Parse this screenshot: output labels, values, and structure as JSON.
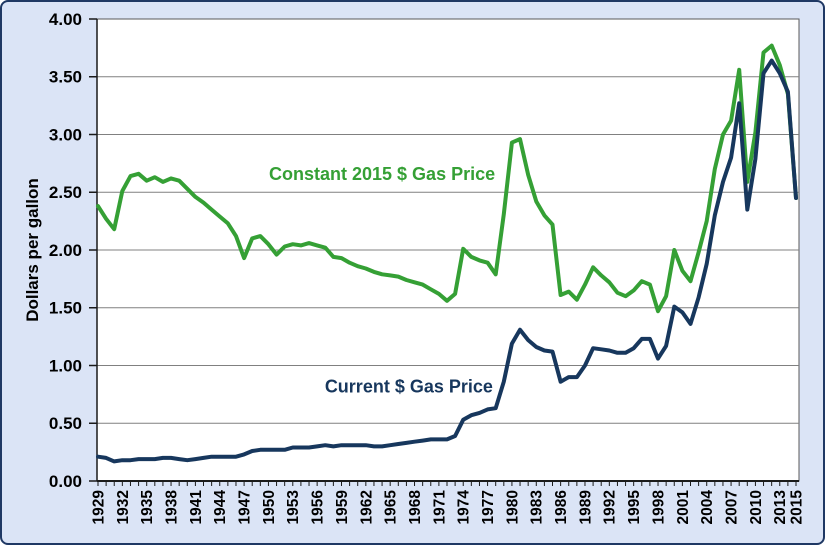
{
  "figure": {
    "background_color": "#dbe4f6",
    "border_color": "#1f3864",
    "plot_background": "#ffffff",
    "gridline_color": "#808080"
  },
  "chart_data": {
    "type": "line",
    "title": "",
    "xlabel": "",
    "ylabel": "Dollars per gallon",
    "ylim": [
      0,
      4
    ],
    "y_tick_step": 0.5,
    "y_tick_labels": [
      "0.00",
      "0.50",
      "1.00",
      "1.50",
      "2.00",
      "2.50",
      "3.00",
      "3.50",
      "4.00"
    ],
    "grid": "horizontal",
    "legend_position": "inline-annotations",
    "x_tick_years": [
      1929,
      1932,
      1935,
      1938,
      1941,
      1944,
      1947,
      1950,
      1953,
      1956,
      1959,
      1962,
      1965,
      1968,
      1971,
      1974,
      1977,
      1980,
      1983,
      1986,
      1989,
      1992,
      1995,
      1998,
      2001,
      2004,
      2007,
      2010,
      2013,
      2015
    ],
    "years": [
      1929,
      1930,
      1931,
      1932,
      1933,
      1934,
      1935,
      1936,
      1937,
      1938,
      1939,
      1940,
      1941,
      1942,
      1943,
      1944,
      1945,
      1946,
      1947,
      1948,
      1949,
      1950,
      1951,
      1952,
      1953,
      1954,
      1955,
      1956,
      1957,
      1958,
      1959,
      1960,
      1961,
      1962,
      1963,
      1964,
      1965,
      1966,
      1967,
      1968,
      1969,
      1970,
      1971,
      1972,
      1973,
      1974,
      1975,
      1976,
      1977,
      1978,
      1979,
      1980,
      1981,
      1982,
      1983,
      1984,
      1985,
      1986,
      1987,
      1988,
      1989,
      1990,
      1991,
      1992,
      1993,
      1994,
      1995,
      1996,
      1997,
      1998,
      1999,
      2000,
      2001,
      2002,
      2003,
      2004,
      2005,
      2006,
      2007,
      2008,
      2009,
      2010,
      2011,
      2012,
      2013,
      2014,
      2015
    ],
    "series": [
      {
        "name": "Constant 2015 $ Gas Price",
        "color": "#35a035",
        "values": [
          2.38,
          2.27,
          2.18,
          2.51,
          2.64,
          2.66,
          2.6,
          2.63,
          2.59,
          2.62,
          2.6,
          2.53,
          2.46,
          2.41,
          2.35,
          2.29,
          2.23,
          2.12,
          1.93,
          2.1,
          2.12,
          2.05,
          1.96,
          2.03,
          2.05,
          2.04,
          2.06,
          2.04,
          2.02,
          1.94,
          1.93,
          1.89,
          1.86,
          1.84,
          1.81,
          1.79,
          1.78,
          1.77,
          1.74,
          1.72,
          1.7,
          1.66,
          1.62,
          1.56,
          1.62,
          2.01,
          1.94,
          1.91,
          1.89,
          1.79,
          2.31,
          2.93,
          2.96,
          2.65,
          2.42,
          2.3,
          2.22,
          1.61,
          1.64,
          1.57,
          1.7,
          1.85,
          1.78,
          1.72,
          1.63,
          1.6,
          1.65,
          1.73,
          1.7,
          1.47,
          1.6,
          2.0,
          1.82,
          1.73,
          1.98,
          2.25,
          2.7,
          3.0,
          3.12,
          3.56,
          2.59,
          3.02,
          3.71,
          3.77,
          3.6,
          3.35,
          2.45
        ]
      },
      {
        "name": "Current $ Gas Price",
        "color": "#17375d",
        "values": [
          0.21,
          0.2,
          0.17,
          0.18,
          0.18,
          0.19,
          0.19,
          0.19,
          0.2,
          0.2,
          0.19,
          0.18,
          0.19,
          0.2,
          0.21,
          0.21,
          0.21,
          0.21,
          0.23,
          0.26,
          0.27,
          0.27,
          0.27,
          0.27,
          0.29,
          0.29,
          0.29,
          0.3,
          0.31,
          0.3,
          0.31,
          0.31,
          0.31,
          0.31,
          0.3,
          0.3,
          0.31,
          0.32,
          0.33,
          0.34,
          0.35,
          0.36,
          0.36,
          0.36,
          0.39,
          0.53,
          0.57,
          0.59,
          0.62,
          0.63,
          0.86,
          1.19,
          1.31,
          1.22,
          1.16,
          1.13,
          1.12,
          0.86,
          0.9,
          0.9,
          1.0,
          1.15,
          1.14,
          1.13,
          1.11,
          1.11,
          1.15,
          1.23,
          1.23,
          1.06,
          1.17,
          1.51,
          1.46,
          1.36,
          1.59,
          1.88,
          2.3,
          2.59,
          2.8,
          3.27,
          2.35,
          2.79,
          3.53,
          3.64,
          3.53,
          3.37,
          2.45
        ]
      }
    ],
    "annotations": [
      {
        "text": "Constant 2015 $ Gas Price",
        "color": "#35a035",
        "year": 1964.0,
        "value": 2.66
      },
      {
        "text": "Current $ Gas Price",
        "color": "#17375d",
        "year": 1967.3,
        "value": 0.82
      }
    ]
  }
}
